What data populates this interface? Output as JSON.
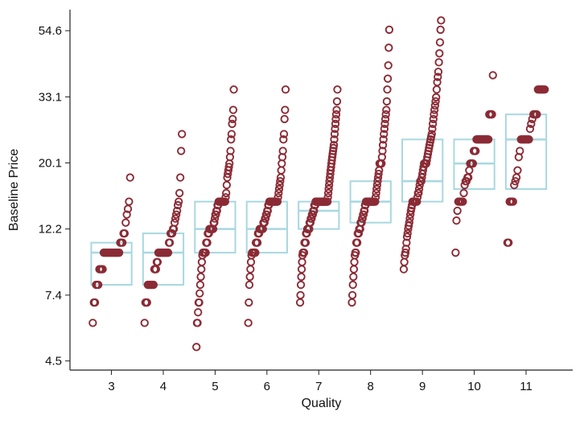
{
  "chart_data": {
    "type": "scatter",
    "title": "",
    "xlabel": "Quality",
    "ylabel": "Baseline Price",
    "y_scale": "log",
    "xlim": [
      2.2,
      11.9
    ],
    "ylim": [
      4.2,
      64
    ],
    "x_ticks": [
      {
        "value": 3,
        "label": "3"
      },
      {
        "value": 4,
        "label": "4"
      },
      {
        "value": 5,
        "label": "5"
      },
      {
        "value": 6,
        "label": "6"
      },
      {
        "value": 7,
        "label": "7"
      },
      {
        "value": 8,
        "label": "8"
      },
      {
        "value": 9,
        "label": "9"
      },
      {
        "value": 10,
        "label": "10"
      },
      {
        "value": 11,
        "label": "11"
      }
    ],
    "y_ticks": [
      {
        "value": 4.5,
        "label": "4.5"
      },
      {
        "value": 7.4,
        "label": "7.4"
      },
      {
        "value": 12.2,
        "label": "12.2"
      },
      {
        "value": 20.1,
        "label": "20.1"
      },
      {
        "value": 33.1,
        "label": "33.1"
      },
      {
        "value": 54.6,
        "label": "54.6"
      }
    ],
    "grid": false,
    "colors": {
      "points": "#8b2b35",
      "boxes": "#a8d8e0",
      "axis": "#222222"
    },
    "boxes": [
      {
        "quality": 3,
        "q1": 8.0,
        "median": 10.2,
        "q3": 11.0
      },
      {
        "quality": 4,
        "q1": 8.0,
        "median": 10.2,
        "q3": 11.8
      },
      {
        "quality": 5,
        "q1": 10.2,
        "median": 12.2,
        "q3": 15.0
      },
      {
        "quality": 6,
        "q1": 10.2,
        "median": 12.2,
        "q3": 15.0
      },
      {
        "quality": 7,
        "q1": 12.2,
        "median": 14.0,
        "q3": 15.0
      },
      {
        "quality": 8,
        "q1": 12.8,
        "median": 15.0,
        "q3": 17.5
      },
      {
        "quality": 9,
        "q1": 15.0,
        "median": 17.5,
        "q3": 24.0
      },
      {
        "quality": 10,
        "q1": 16.5,
        "median": 20.0,
        "q3": 24.0
      },
      {
        "quality": 11,
        "q1": 16.5,
        "median": 24.0,
        "q3": 29.0
      }
    ],
    "series": [
      {
        "quality": 3,
        "y": [
          6.0,
          7.0,
          7.0,
          8.0,
          8.0,
          8.0,
          9.0,
          9.0,
          9.0,
          9.0,
          10.2,
          10.2,
          10.2,
          10.2,
          10.2,
          10.2,
          10.2,
          10.2,
          10.2,
          10.2,
          10.2,
          10.2,
          10.2,
          10.2,
          10.2,
          11.0,
          11.0,
          11.0,
          11.8,
          11.8,
          12.8,
          13.6,
          14.2,
          15.0,
          18.0
        ]
      },
      {
        "quality": 4,
        "y": [
          6.0,
          7.0,
          7.0,
          7.0,
          8.0,
          8.0,
          8.0,
          8.0,
          8.0,
          8.0,
          8.0,
          8.0,
          9.0,
          9.0,
          9.0,
          9.5,
          9.5,
          10.2,
          10.2,
          10.2,
          10.2,
          10.2,
          10.2,
          10.2,
          10.2,
          10.2,
          10.2,
          10.2,
          10.2,
          10.2,
          11.0,
          11.0,
          11.8,
          11.8,
          11.8,
          12.2,
          12.2,
          12.8,
          13.2,
          13.6,
          14.0,
          14.6,
          15.0,
          16.0,
          18.0,
          22.0,
          25.0
        ]
      },
      {
        "quality": 5,
        "y": [
          5.0,
          6.0,
          6.0,
          6.5,
          7.0,
          7.0,
          7.5,
          8.0,
          8.5,
          9.0,
          9.5,
          10.0,
          10.2,
          10.2,
          10.2,
          10.2,
          10.2,
          10.2,
          11.0,
          11.0,
          11.0,
          11.8,
          11.8,
          11.8,
          12.2,
          12.2,
          12.2,
          12.2,
          12.2,
          12.2,
          12.2,
          12.2,
          12.8,
          12.8,
          13.2,
          13.6,
          13.6,
          14.0,
          14.0,
          14.6,
          14.6,
          15.0,
          15.0,
          15.0,
          15.0,
          15.0,
          15.0,
          15.0,
          15.0,
          15.0,
          15.0,
          15.0,
          15.0,
          15.0,
          15.5,
          16.0,
          17.0,
          18.0,
          18.5,
          19.0,
          19.5,
          20.0,
          21.0,
          22.0,
          24.0,
          25.0,
          27.0,
          28.0,
          30.0,
          35.0
        ]
      },
      {
        "quality": 6,
        "y": [
          6.0,
          7.0,
          8.0,
          8.5,
          9.0,
          9.5,
          10.0,
          10.2,
          10.2,
          10.2,
          10.2,
          10.2,
          10.2,
          10.2,
          11.0,
          11.0,
          11.0,
          11.0,
          11.8,
          11.8,
          11.8,
          12.2,
          12.2,
          12.2,
          12.2,
          12.2,
          12.2,
          12.2,
          12.8,
          12.8,
          12.8,
          13.2,
          13.2,
          13.6,
          13.6,
          14.0,
          14.0,
          14.6,
          14.6,
          15.0,
          15.0,
          15.0,
          15.0,
          15.0,
          15.0,
          15.0,
          15.0,
          15.0,
          15.0,
          15.0,
          15.0,
          15.0,
          15.0,
          15.0,
          15.0,
          15.5,
          16.0,
          16.5,
          17.0,
          17.5,
          18.0,
          19.0,
          20.0,
          21.0,
          22.0,
          24.0,
          25.0,
          28.0,
          30.0,
          35.0
        ]
      },
      {
        "quality": 7,
        "y": [
          7.0,
          7.4,
          8.0,
          8.5,
          9.0,
          9.5,
          10.0,
          10.2,
          10.2,
          10.2,
          10.2,
          11.0,
          11.0,
          11.0,
          11.0,
          11.8,
          11.8,
          11.8,
          12.2,
          12.2,
          12.2,
          12.2,
          12.2,
          12.2,
          12.8,
          12.8,
          12.8,
          13.2,
          13.2,
          13.2,
          13.6,
          13.6,
          13.6,
          14.0,
          14.0,
          14.0,
          14.6,
          14.6,
          14.6,
          15.0,
          15.0,
          15.0,
          15.0,
          15.0,
          15.0,
          15.0,
          15.0,
          15.0,
          15.0,
          15.0,
          15.0,
          15.0,
          15.0,
          15.0,
          15.0,
          15.0,
          15.0,
          15.0,
          15.0,
          15.0,
          15.0,
          15.0,
          15.0,
          15.0,
          15.0,
          15.0,
          15.0,
          15.0,
          15.0,
          15.0,
          15.5,
          16.0,
          16.5,
          17.0,
          17.5,
          18.0,
          18.5,
          19.0,
          19.5,
          20.0,
          20.5,
          21.0,
          21.5,
          22.0,
          22.5,
          23.0,
          24.0,
          25.0,
          26.0,
          27.0,
          28.0,
          29.0,
          30.0,
          32.0,
          35.0
        ]
      },
      {
        "quality": 8,
        "y": [
          7.0,
          7.4,
          8.0,
          8.5,
          9.0,
          9.5,
          10.0,
          10.2,
          10.2,
          11.0,
          11.0,
          11.0,
          11.8,
          11.8,
          11.8,
          12.2,
          12.2,
          12.2,
          12.8,
          12.8,
          12.8,
          13.2,
          13.2,
          13.6,
          13.6,
          14.0,
          14.0,
          14.6,
          14.6,
          15.0,
          15.0,
          15.0,
          15.0,
          15.0,
          15.0,
          15.0,
          15.0,
          15.0,
          15.0,
          15.0,
          15.0,
          15.0,
          15.0,
          15.0,
          15.0,
          15.0,
          15.0,
          15.0,
          15.0,
          15.5,
          16.0,
          16.5,
          17.0,
          17.5,
          18.0,
          18.5,
          19.0,
          20.0,
          20.0,
          20.0,
          20.0,
          20.0,
          21.0,
          22.0,
          23.0,
          24.0,
          25.0,
          26.0,
          27.0,
          28.0,
          29.0,
          30.0,
          32.0,
          35.0,
          38.0,
          42.0,
          48.0,
          55.0
        ]
      },
      {
        "quality": 9,
        "y": [
          9.0,
          9.5,
          10.0,
          10.2,
          10.5,
          11.0,
          11.5,
          11.8,
          12.2,
          12.5,
          12.8,
          13.2,
          13.6,
          14.0,
          14.3,
          14.6,
          15.0,
          15.0,
          15.0,
          15.0,
          15.0,
          15.0,
          15.0,
          15.0,
          15.0,
          15.5,
          16.0,
          16.0,
          16.5,
          17.0,
          17.5,
          17.5,
          17.5,
          18.0,
          18.5,
          19.0,
          19.5,
          20.0,
          20.0,
          20.0,
          20.0,
          20.0,
          20.5,
          21.0,
          21.5,
          22.0,
          22.5,
          23.0,
          23.5,
          24.0,
          24.5,
          25.0,
          26.0,
          27.0,
          28.0,
          29.0,
          30.0,
          31.0,
          32.0,
          33.0,
          35.0,
          37.0,
          38.5,
          40.0,
          43.0,
          46.0,
          50.0,
          55.0,
          59.0
        ]
      },
      {
        "quality": 10,
        "y": [
          10.2,
          13.0,
          14.0,
          15.0,
          15.0,
          15.0,
          15.0,
          15.0,
          15.0,
          16.0,
          17.0,
          17.5,
          17.5,
          18.0,
          18.0,
          19.0,
          20.0,
          20.0,
          20.0,
          20.0,
          22.0,
          22.0,
          22.0,
          24.0,
          24.0,
          24.0,
          24.0,
          24.0,
          24.0,
          24.0,
          24.0,
          24.0,
          24.0,
          24.0,
          24.0,
          24.0,
          24.0,
          29.0,
          29.0,
          29.0,
          29.0,
          39.0
        ]
      },
      {
        "quality": 11,
        "y": [
          11.0,
          11.0,
          15.0,
          15.0,
          15.0,
          15.0,
          17.0,
          17.5,
          18.0,
          19.0,
          21.0,
          22.0,
          24.0,
          24.0,
          24.0,
          24.0,
          24.0,
          24.0,
          24.0,
          24.0,
          26.0,
          27.0,
          28.0,
          29.0,
          29.0,
          29.0,
          29.0,
          35.0,
          35.0,
          35.0,
          35.0,
          35.0,
          35.0,
          35.0
        ]
      }
    ]
  }
}
